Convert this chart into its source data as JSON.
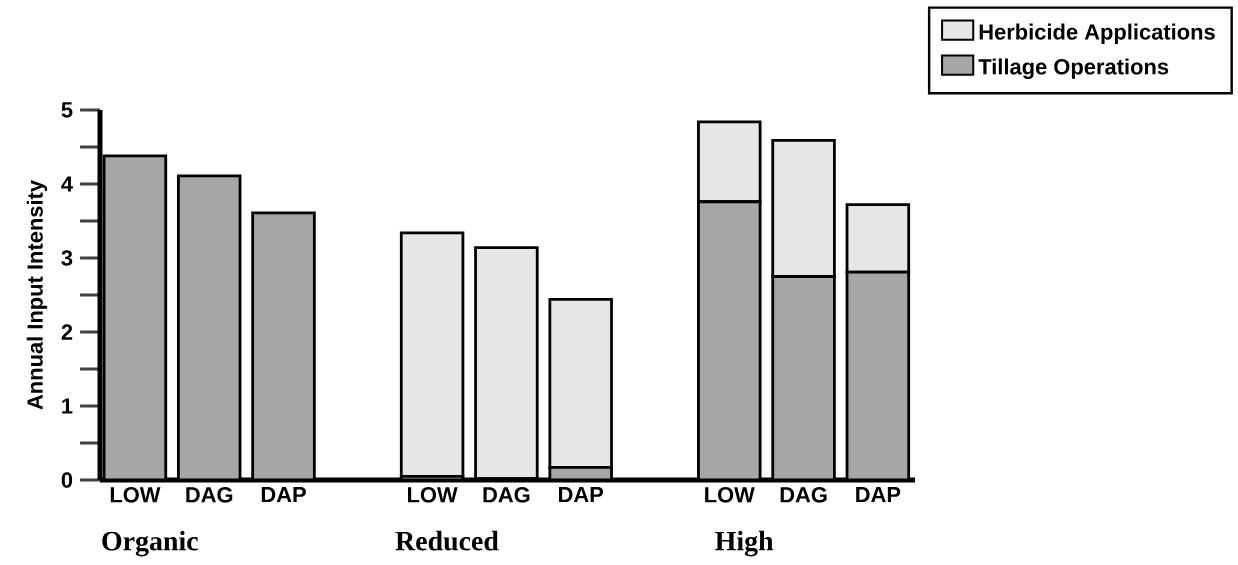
{
  "chart_data": {
    "type": "bar",
    "stacked": true,
    "ylabel": "Annual Input Intensity",
    "categories": [
      "LOW",
      "DAG",
      "DAP",
      null,
      "LOW",
      "DAG",
      "DAP",
      null,
      "LOW",
      "DAG",
      "DAP"
    ],
    "series": [
      {
        "name": "Tillage Operations",
        "color": "#a6a6a6",
        "values": [
          4.38,
          4.11,
          3.61,
          null,
          0.05,
          0.02,
          0.17,
          null,
          3.76,
          2.75,
          2.81
        ]
      },
      {
        "name": "Herbicide Applications",
        "color": "#e6e6e6",
        "values": [
          0,
          0,
          0,
          null,
          3.29,
          3.12,
          2.27,
          null,
          1.08,
          1.84,
          0.91
        ]
      }
    ],
    "ylim": [
      0,
      5
    ],
    "yticks": [
      0,
      1,
      2,
      3,
      4,
      5
    ],
    "annotations": [
      "Organic",
      "Reduced",
      "High"
    ],
    "grid": false,
    "legend": "top right"
  }
}
